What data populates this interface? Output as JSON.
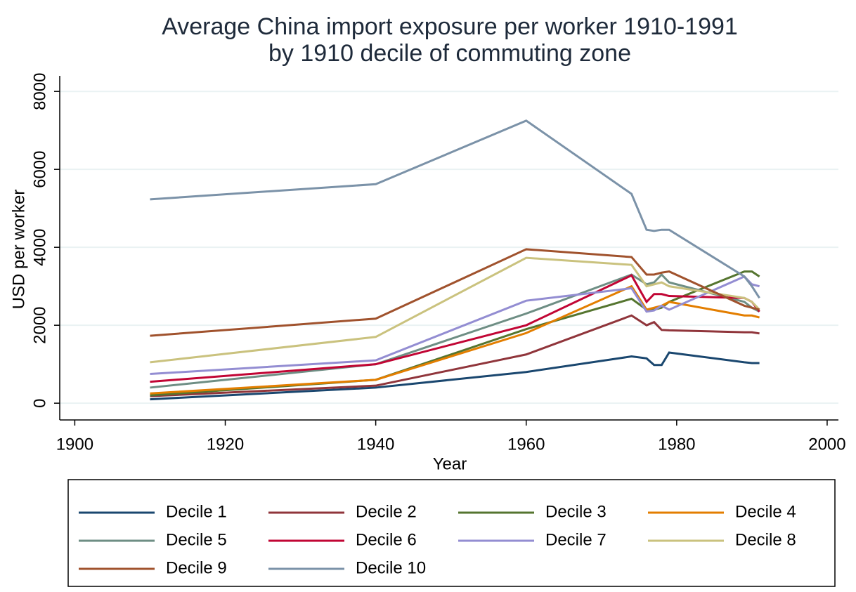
{
  "chart_data": {
    "type": "line",
    "title": [
      "Average China import exposure per worker 1910-1991",
      "by 1910 decile of commuting zone"
    ],
    "x_label": "Year",
    "y_label": "USD per worker",
    "x": [
      1910,
      1940,
      1960,
      1974,
      1976,
      1977,
      1978,
      1979,
      1989,
      1990,
      1991
    ],
    "xlim": [
      1898,
      2001.5
    ],
    "xticks": [
      1900,
      1920,
      1940,
      1960,
      1980,
      2000
    ],
    "ylim": [
      -430,
      8400
    ],
    "yticks": [
      0,
      2000,
      4000,
      6000,
      8000
    ],
    "grid": true,
    "series": [
      {
        "name": "Decile 1",
        "color": "#1a476f",
        "values": [
          100,
          400,
          800,
          1200,
          1150,
          980,
          980,
          1300,
          1050,
          1030,
          1030
        ]
      },
      {
        "name": "Decile 2",
        "color": "#90353b",
        "values": [
          180,
          450,
          1250,
          2250,
          2000,
          2080,
          1880,
          1870,
          1820,
          1820,
          1790
        ]
      },
      {
        "name": "Decile 3",
        "color": "#55752f",
        "values": [
          200,
          600,
          1900,
          2680,
          2400,
          2400,
          2450,
          2600,
          3380,
          3380,
          3250
        ]
      },
      {
        "name": "Decile 4",
        "color": "#e37e00",
        "values": [
          250,
          600,
          1800,
          3000,
          2400,
          2450,
          2500,
          2600,
          2250,
          2250,
          2200
        ]
      },
      {
        "name": "Decile 5",
        "color": "#6e8e84",
        "values": [
          400,
          1000,
          2300,
          3300,
          3050,
          3100,
          3300,
          3100,
          2600,
          2450,
          2350
        ]
      },
      {
        "name": "Decile 6",
        "color": "#c10534",
        "values": [
          550,
          1000,
          2000,
          3280,
          2600,
          2800,
          2800,
          2750,
          2700,
          2600,
          2350
        ]
      },
      {
        "name": "Decile 7",
        "color": "#938dd2",
        "values": [
          750,
          1100,
          2630,
          2950,
          2350,
          2380,
          2500,
          2400,
          3250,
          3050,
          3000
        ]
      },
      {
        "name": "Decile 8",
        "color": "#cac27e",
        "values": [
          1050,
          1700,
          3730,
          3550,
          3000,
          3050,
          3100,
          3000,
          2700,
          2600,
          2400
        ]
      },
      {
        "name": "Decile 9",
        "color": "#a0522d",
        "values": [
          1730,
          2170,
          3950,
          3750,
          3300,
          3300,
          3350,
          3380,
          2500,
          2450,
          2400
        ]
      },
      {
        "name": "Decile 10",
        "color": "#7b92a8",
        "values": [
          5230,
          5620,
          7250,
          5370,
          4450,
          4420,
          4450,
          4450,
          3250,
          3000,
          2700
        ]
      }
    ]
  }
}
